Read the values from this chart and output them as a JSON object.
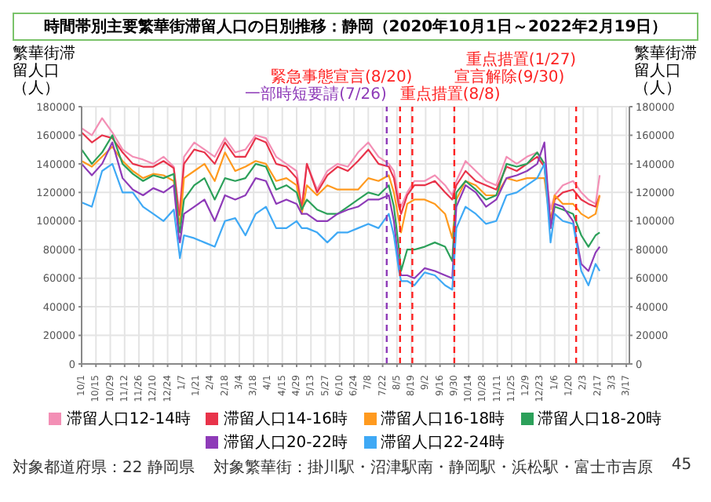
{
  "chart_data": {
    "type": "line",
    "title": "時間帯別主要繁華街滞留人口の日別推移：静岡（2020年10月1日～2022年2月19日）",
    "ylabel": "繁華街滞留人口（人）",
    "y2label": "繁華街滞留人口（人）",
    "x": [
      "2020-10-01",
      "2020-10-11",
      "2020-10-21",
      "2020-10-31",
      "2020-11-10",
      "2020-11-20",
      "2020-11-30",
      "2020-12-10",
      "2020-12-20",
      "2020-12-30",
      "2021-01-04",
      "2021-01-05",
      "2021-01-09",
      "2021-01-19",
      "2021-01-29",
      "2021-02-08",
      "2021-02-18",
      "2021-02-28",
      "2021-03-10",
      "2021-03-20",
      "2021-03-30",
      "2021-04-09",
      "2021-04-19",
      "2021-04-29",
      "2021-05-04",
      "2021-05-09",
      "2021-05-19",
      "2021-05-29",
      "2021-06-08",
      "2021-06-18",
      "2021-06-28",
      "2021-07-08",
      "2021-07-18",
      "2021-07-28",
      "2021-08-02",
      "2021-08-07",
      "2021-08-09",
      "2021-08-15",
      "2021-08-22",
      "2021-09-01",
      "2021-09-11",
      "2021-09-21",
      "2021-09-28",
      "2021-10-02",
      "2021-10-11",
      "2021-10-21",
      "2021-10-31",
      "2021-11-10",
      "2021-11-20",
      "2021-11-30",
      "2021-12-10",
      "2021-12-20",
      "2021-12-27",
      "2022-01-02",
      "2022-01-06",
      "2022-01-14",
      "2022-01-24",
      "2022-02-01",
      "2022-02-08",
      "2022-02-15",
      "2022-02-19"
    ],
    "series": [
      {
        "name": "滞留人口12-14時",
        "color": "#f38fb5",
        "values": [
          165000,
          160000,
          172000,
          162000,
          150000,
          145000,
          143000,
          140000,
          145000,
          138000,
          108000,
          110000,
          145000,
          155000,
          150000,
          145000,
          158000,
          148000,
          150000,
          160000,
          158000,
          145000,
          140000,
          135000,
          110000,
          140000,
          122000,
          135000,
          140000,
          138000,
          148000,
          155000,
          145000,
          140000,
          135000,
          115000,
          110000,
          120000,
          128000,
          128000,
          132000,
          125000,
          118000,
          128000,
          142000,
          135000,
          128000,
          125000,
          145000,
          140000,
          145000,
          148000,
          140000,
          108000,
          118000,
          125000,
          128000,
          120000,
          115000,
          112000,
          132000
        ]
      },
      {
        "name": "滞留人口14-16時",
        "color": "#e8334a",
        "values": [
          162000,
          155000,
          160000,
          158000,
          148000,
          140000,
          138000,
          138000,
          142000,
          137000,
          104000,
          105000,
          140000,
          150000,
          148000,
          140000,
          155000,
          145000,
          145000,
          158000,
          155000,
          140000,
          138000,
          130000,
          108000,
          140000,
          120000,
          132000,
          138000,
          135000,
          142000,
          150000,
          140000,
          138000,
          130000,
          110000,
          105000,
          118000,
          125000,
          125000,
          128000,
          120000,
          115000,
          125000,
          135000,
          128000,
          125000,
          122000,
          138000,
          135000,
          140000,
          145000,
          138000,
          100000,
          115000,
          120000,
          122000,
          115000,
          112000,
          110000,
          118000
        ]
      },
      {
        "name": "滞留人口16-18時",
        "color": "#ff9a1f",
        "values": [
          142000,
          138000,
          145000,
          152000,
          142000,
          135000,
          130000,
          133000,
          132000,
          128000,
          100000,
          98000,
          130000,
          135000,
          140000,
          128000,
          148000,
          135000,
          138000,
          142000,
          140000,
          128000,
          130000,
          125000,
          105000,
          125000,
          118000,
          125000,
          122000,
          122000,
          122000,
          130000,
          128000,
          132000,
          120000,
          100000,
          92000,
          112000,
          115000,
          115000,
          112000,
          105000,
          88000,
          115000,
          128000,
          125000,
          118000,
          118000,
          130000,
          128000,
          130000,
          130000,
          130000,
          97000,
          118000,
          112000,
          112000,
          105000,
          102000,
          105000,
          118000
        ]
      },
      {
        "name": "滞留人口18-20時",
        "color": "#2ca05a",
        "values": [
          150000,
          140000,
          148000,
          160000,
          140000,
          133000,
          128000,
          132000,
          130000,
          133000,
          95000,
          92000,
          115000,
          125000,
          130000,
          115000,
          130000,
          128000,
          130000,
          140000,
          138000,
          122000,
          125000,
          120000,
          108000,
          115000,
          108000,
          105000,
          105000,
          110000,
          115000,
          120000,
          118000,
          125000,
          110000,
          80000,
          65000,
          80000,
          80000,
          82000,
          85000,
          82000,
          72000,
          120000,
          128000,
          122000,
          115000,
          118000,
          140000,
          138000,
          140000,
          148000,
          140000,
          95000,
          110000,
          108000,
          105000,
          90000,
          82000,
          90000,
          92000
        ]
      },
      {
        "name": "滞留人口20-22時",
        "color": "#8e3bb8",
        "values": [
          140000,
          132000,
          140000,
          155000,
          130000,
          122000,
          118000,
          123000,
          120000,
          125000,
          88000,
          85000,
          105000,
          110000,
          115000,
          100000,
          118000,
          115000,
          118000,
          130000,
          128000,
          112000,
          115000,
          112000,
          105000,
          105000,
          100000,
          100000,
          105000,
          108000,
          110000,
          115000,
          115000,
          118000,
          100000,
          68000,
          62000,
          62000,
          60000,
          67000,
          65000,
          62000,
          60000,
          110000,
          125000,
          120000,
          110000,
          115000,
          130000,
          132000,
          135000,
          140000,
          155000,
          95000,
          112000,
          110000,
          100000,
          70000,
          65000,
          78000,
          82000
        ]
      },
      {
        "name": "滞留人口22-24時",
        "color": "#3fa9f5",
        "values": [
          113000,
          110000,
          135000,
          140000,
          120000,
          120000,
          110000,
          105000,
          100000,
          108000,
          80000,
          74000,
          90000,
          88000,
          85000,
          82000,
          100000,
          102000,
          90000,
          105000,
          110000,
          95000,
          95000,
          100000,
          95000,
          95000,
          92000,
          85000,
          92000,
          92000,
          95000,
          98000,
          95000,
          105000,
          90000,
          65000,
          58000,
          58000,
          55000,
          64000,
          62000,
          55000,
          52000,
          95000,
          110000,
          105000,
          98000,
          100000,
          118000,
          120000,
          125000,
          130000,
          140000,
          85000,
          105000,
          100000,
          98000,
          65000,
          55000,
          70000,
          65000
        ]
      }
    ],
    "xlim": [
      "2020-10-01",
      "2022-03-20"
    ],
    "xticks": [
      {
        "value": "2020-10-01",
        "label": "10/1"
      },
      {
        "value": "2020-10-15",
        "label": "10/15"
      },
      {
        "value": "2020-10-29",
        "label": "10/29"
      },
      {
        "value": "2020-11-12",
        "label": "11/12"
      },
      {
        "value": "2020-11-26",
        "label": "11/26"
      },
      {
        "value": "2020-12-10",
        "label": "12/10"
      },
      {
        "value": "2020-12-24",
        "label": "12/24"
      },
      {
        "value": "2021-01-07",
        "label": "1/7"
      },
      {
        "value": "2021-01-21",
        "label": "1/21"
      },
      {
        "value": "2021-02-04",
        "label": "2/4"
      },
      {
        "value": "2021-02-18",
        "label": "2/18"
      },
      {
        "value": "2021-03-04",
        "label": "3/4"
      },
      {
        "value": "2021-03-18",
        "label": "3/18"
      },
      {
        "value": "2021-04-01",
        "label": "4/1"
      },
      {
        "value": "2021-04-15",
        "label": "4/15"
      },
      {
        "value": "2021-04-29",
        "label": "4/29"
      },
      {
        "value": "2021-05-13",
        "label": "5/13"
      },
      {
        "value": "2021-05-27",
        "label": "5/27"
      },
      {
        "value": "2021-06-10",
        "label": "6/10"
      },
      {
        "value": "2021-06-24",
        "label": "6/24"
      },
      {
        "value": "2021-07-08",
        "label": "7/8"
      },
      {
        "value": "2021-07-22",
        "label": "7/22"
      },
      {
        "value": "2021-08-05",
        "label": "8/5"
      },
      {
        "value": "2021-08-19",
        "label": "8/19"
      },
      {
        "value": "2021-09-02",
        "label": "9/2"
      },
      {
        "value": "2021-09-16",
        "label": "9/16"
      },
      {
        "value": "2021-09-30",
        "label": "9/30"
      },
      {
        "value": "2021-10-14",
        "label": "10/14"
      },
      {
        "value": "2021-10-28",
        "label": "10/28"
      },
      {
        "value": "2021-11-11",
        "label": "11/11"
      },
      {
        "value": "2021-11-25",
        "label": "11/25"
      },
      {
        "value": "2021-12-09",
        "label": "12/9"
      },
      {
        "value": "2021-12-23",
        "label": "12/23"
      },
      {
        "value": "2022-01-06",
        "label": "1/6"
      },
      {
        "value": "2022-01-20",
        "label": "1/20"
      },
      {
        "value": "2022-02-03",
        "label": "2/3"
      },
      {
        "value": "2022-02-17",
        "label": "2/17"
      },
      {
        "value": "2022-03-03",
        "label": "3/3"
      },
      {
        "value": "2022-03-17",
        "label": "3/17"
      }
    ],
    "ylim": [
      0,
      180000
    ],
    "yticks": [
      0,
      20000,
      40000,
      60000,
      80000,
      100000,
      120000,
      140000,
      160000,
      180000
    ],
    "y2lim": [
      0,
      180000
    ],
    "y2ticks": [
      0,
      20000,
      40000,
      60000,
      80000,
      100000,
      120000,
      140000,
      160000,
      180000
    ],
    "ref_lines": [
      {
        "axis": "x",
        "value": "2021-07-26",
        "label": "一部時短要請(7/26)",
        "color": "#8e3bb8",
        "line_style": "dashed"
      },
      {
        "axis": "x",
        "value": "2021-08-08",
        "label": "重点措置(8/8)",
        "color": "#ff2020",
        "line_style": "dashed"
      },
      {
        "axis": "x",
        "value": "2021-08-20",
        "label": "緊急事態宣言(8/20)",
        "color": "#fe2121",
        "line_style": "dashed"
      },
      {
        "axis": "x",
        "value": "2021-09-30",
        "label": "宣言解除(9/30)",
        "color": "#fd2222",
        "line_style": "dashed"
      },
      {
        "axis": "x",
        "value": "2022-01-27",
        "label": "重点措置(1/27)",
        "color": "#fc2323",
        "line_style": "dashed"
      }
    ],
    "annotations": [
      "対象都道府県：22 静岡県",
      "対象繁華街：掛川駅・沼津駅南・静岡駅・浜松駅・富士市吉原",
      "45"
    ],
    "grid": true,
    "legend": "bottom",
    "marker": "none",
    "line_style": "solid"
  }
}
